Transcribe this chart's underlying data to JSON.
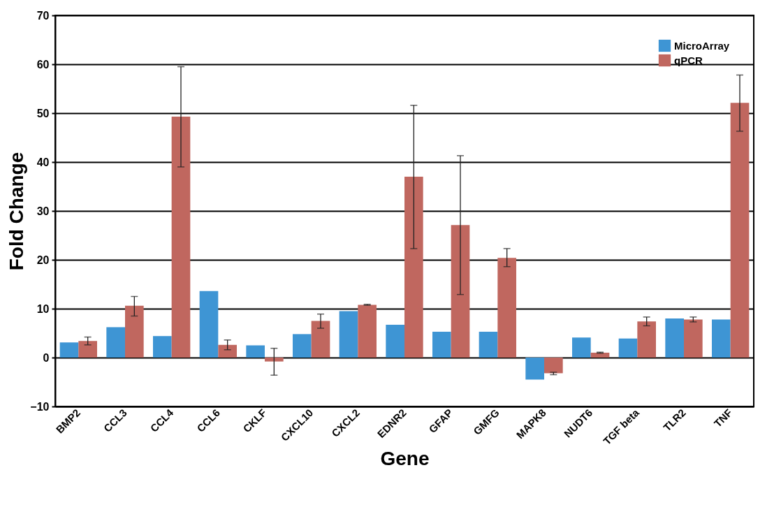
{
  "chart_data": {
    "type": "bar",
    "xlabel": "Gene",
    "ylabel": "Fold Change",
    "categories": [
      "BMP2",
      "CCL3",
      "CCL4",
      "CCL6",
      "CKLF",
      "CXCL10",
      "CXCL2",
      "EDNR2",
      "GFAP",
      "GMFG",
      "MAPK8",
      "NUDT6",
      "TGF beta",
      "TLR2",
      "TNF"
    ],
    "series": [
      {
        "name": "MicroArray",
        "color": "#3e95d4",
        "values": [
          3.1,
          6.2,
          4.4,
          13.6,
          2.5,
          4.8,
          9.5,
          6.7,
          5.3,
          5.3,
          -4.5,
          4.1,
          3.9,
          8.0,
          7.8
        ]
      },
      {
        "name": "qPCR",
        "color": "#c0675f",
        "values": [
          3.4,
          10.6,
          49.3,
          2.6,
          -0.8,
          7.5,
          10.8,
          37.0,
          27.1,
          20.4,
          -3.2,
          1.0,
          7.4,
          7.8,
          52.1
        ],
        "errors": [
          [
            2.6,
            4.2
          ],
          [
            8.5,
            12.5
          ],
          [
            39.0,
            59.5
          ],
          [
            1.6,
            3.6
          ],
          [
            -3.6,
            1.9
          ],
          [
            6.0,
            8.9
          ],
          [
            10.7,
            10.9
          ],
          [
            22.3,
            51.6
          ],
          [
            12.9,
            41.3
          ],
          [
            18.6,
            22.3
          ],
          [
            -3.5,
            -3.0
          ],
          [
            0.9,
            1.1
          ],
          [
            6.5,
            8.3
          ],
          [
            7.3,
            8.3
          ],
          [
            46.3,
            57.8
          ]
        ]
      }
    ],
    "ylim": [
      -10,
      70
    ],
    "yticks": [
      -10,
      0,
      10,
      20,
      30,
      40,
      50,
      60,
      70
    ],
    "grid": "y",
    "legend": "top right"
  }
}
